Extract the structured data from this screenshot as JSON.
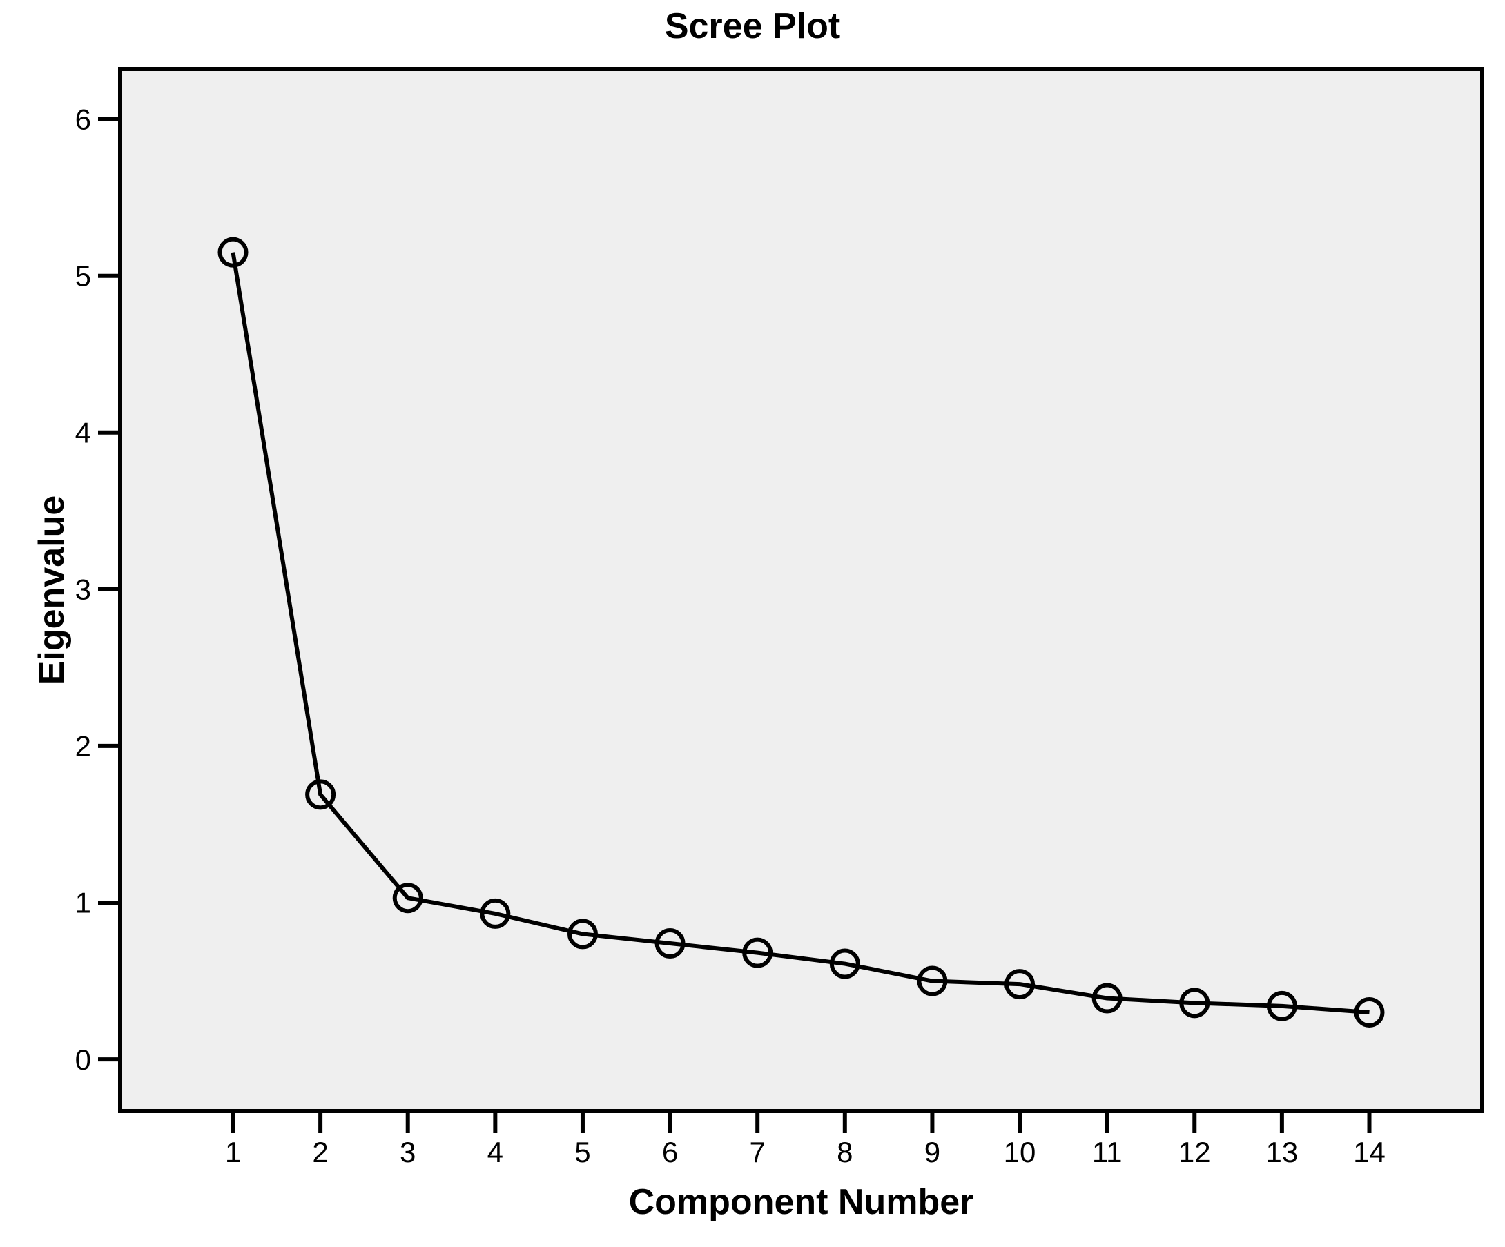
{
  "chart_data": {
    "type": "line",
    "title": "Scree Plot",
    "xlabel": "Component Number",
    "ylabel": "Eigenvalue",
    "categories": [
      1,
      2,
      3,
      4,
      5,
      6,
      7,
      8,
      9,
      10,
      11,
      12,
      13,
      14
    ],
    "series": [
      {
        "name": "Eigenvalue",
        "values": [
          5.15,
          1.69,
          1.03,
          0.93,
          0.8,
          0.74,
          0.68,
          0.61,
          0.5,
          0.48,
          0.39,
          0.36,
          0.34,
          0.3
        ]
      }
    ],
    "y_ticks": [
      0,
      1,
      2,
      3,
      4,
      5,
      6
    ],
    "ylim": [
      -0.33,
      6.32
    ],
    "grid": false,
    "legend_position": "none",
    "marker": "open-circle",
    "colors": {
      "line": "#000000",
      "marker_stroke": "#000000",
      "plot_background": "#efefef",
      "frame": "#000000",
      "text": "#000000",
      "page_background": "#ffffff"
    }
  }
}
